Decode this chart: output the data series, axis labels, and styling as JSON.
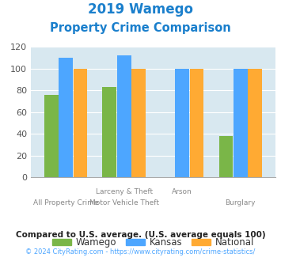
{
  "title_line1": "2019 Wamego",
  "title_line2": "Property Crime Comparison",
  "title_color": "#1a7fcc",
  "bar_groups": [
    {
      "wamego": 76,
      "kansas": 110,
      "national": 100
    },
    {
      "wamego": 83,
      "kansas": 112,
      "national": 100
    },
    {
      "wamego": 0,
      "kansas": 100,
      "national": 100
    },
    {
      "wamego": 38,
      "kansas": 100,
      "national": 100
    }
  ],
  "xtick_row1": [
    "",
    "Larceny & Theft",
    "Arson",
    ""
  ],
  "xtick_row2": [
    "All Property Crime",
    "Motor Vehicle Theft",
    "",
    "Burglary"
  ],
  "color_wamego": "#7ab648",
  "color_kansas": "#4da6ff",
  "color_national": "#ffaa33",
  "ylim": [
    0,
    120
  ],
  "yticks": [
    0,
    20,
    40,
    60,
    80,
    100,
    120
  ],
  "background_color": "#d8e8f0",
  "legend_labels": [
    "Wamego",
    "Kansas",
    "National"
  ],
  "legend_text_color": "#333333",
  "footnote1": "Compared to U.S. average. (U.S. average equals 100)",
  "footnote2": "© 2024 CityRating.com - https://www.cityrating.com/crime-statistics/",
  "footnote1_color": "#222222",
  "footnote2_color": "#4da6ff",
  "xtick_color1": "#888888",
  "xtick_color2": "#888888"
}
